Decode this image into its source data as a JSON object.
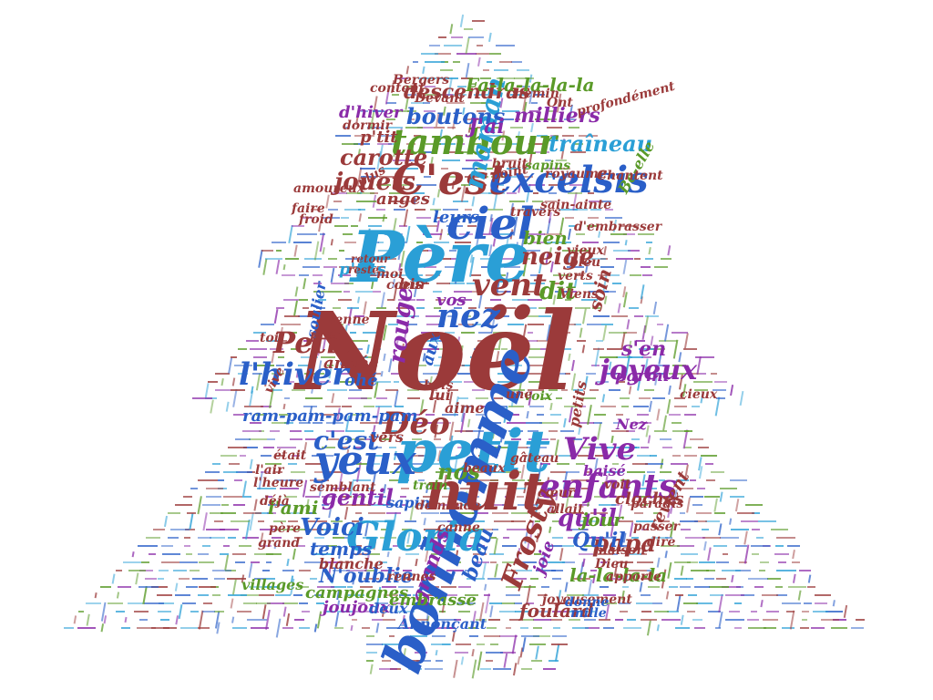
{
  "palette": {
    "red": "#9b3a3a",
    "blue": "#2a5fc8",
    "cyan": "#2a9fd6",
    "green": "#5a9a28",
    "purple": "#8a2aa8"
  },
  "words": [
    {
      "text": "Noël",
      "color": "red"
    },
    {
      "text": "Père",
      "color": "cyan"
    },
    {
      "text": "petit",
      "color": "cyan"
    },
    {
      "text": "bonhomme",
      "color": "blue"
    },
    {
      "text": "nuit",
      "color": "red"
    },
    {
      "text": "C'est",
      "color": "red"
    },
    {
      "text": "excelsis",
      "color": "blue"
    },
    {
      "text": "tambour",
      "color": "green"
    },
    {
      "text": "ciel",
      "color": "blue"
    },
    {
      "text": "Gloria",
      "color": "cyan"
    },
    {
      "text": "yeux",
      "color": "blue"
    },
    {
      "text": "enfants",
      "color": "purple"
    },
    {
      "text": "vent",
      "color": "red"
    },
    {
      "text": "nez",
      "color": "blue"
    },
    {
      "text": "Déo",
      "color": "red"
    },
    {
      "text": "l'hiver",
      "color": "blue"
    },
    {
      "text": "Petit",
      "color": "red"
    },
    {
      "text": "maman",
      "color": "cyan"
    },
    {
      "text": "Frosty",
      "color": "red"
    },
    {
      "text": "joyeux",
      "color": "purple"
    },
    {
      "text": "Vive",
      "color": "purple"
    },
    {
      "text": "neige",
      "color": "red"
    },
    {
      "text": "dit",
      "color": "green"
    },
    {
      "text": "rouge",
      "color": "purple"
    },
    {
      "text": "qu'il",
      "color": "purple"
    },
    {
      "text": "c'est",
      "color": "blue"
    },
    {
      "text": "nos",
      "color": "green"
    },
    {
      "text": "gentil",
      "color": "purple"
    },
    {
      "text": "Voici",
      "color": "blue"
    },
    {
      "text": "papa",
      "color": "red"
    },
    {
      "text": "jouets",
      "color": "red"
    },
    {
      "text": "carotte",
      "color": "red"
    },
    {
      "text": "traîneau",
      "color": "cyan"
    },
    {
      "text": "boutons",
      "color": "blue"
    },
    {
      "text": "descendras",
      "color": "red"
    },
    {
      "text": "Fa-la-la-la-la",
      "color": "green"
    },
    {
      "text": "milliers",
      "color": "purple"
    },
    {
      "text": "bien",
      "color": "green"
    },
    {
      "text": "l'ami",
      "color": "green"
    },
    {
      "text": "temps",
      "color": "blue"
    },
    {
      "text": "jour",
      "color": "green"
    },
    {
      "text": "Qu'il",
      "color": "blue"
    },
    {
      "text": "beau",
      "color": "blue"
    },
    {
      "text": "grands",
      "color": "purple"
    },
    {
      "text": "joie",
      "color": "purple"
    },
    {
      "text": "la-la-la-la",
      "color": "green"
    },
    {
      "text": "N'oublie",
      "color": "blue"
    },
    {
      "text": "embrasse",
      "color": "green"
    },
    {
      "text": "ram-pam-pam-pam",
      "color": "blue"
    },
    {
      "text": "leurs",
      "color": "blue"
    },
    {
      "text": "anges",
      "color": "red"
    },
    {
      "text": "d'hiver",
      "color": "purple"
    },
    {
      "text": "p'tit",
      "color": "red"
    },
    {
      "text": "J'ai",
      "color": "purple"
    },
    {
      "text": "soin",
      "color": "red"
    },
    {
      "text": "s'en",
      "color": "purple"
    },
    {
      "text": "parmi",
      "color": "purple"
    },
    {
      "text": "vos",
      "color": "purple"
    },
    {
      "text": "p'tits",
      "color": "cyan"
    },
    {
      "text": "bis",
      "color": "red"
    },
    {
      "text": "soulier",
      "color": "blue"
    },
    {
      "text": "année",
      "color": "red"
    },
    {
      "text": "ohé",
      "color": "blue"
    },
    {
      "text": "aux",
      "color": "blue"
    },
    {
      "text": "vers",
      "color": "red"
    },
    {
      "text": "revient",
      "color": "red"
    },
    {
      "text": "foulard",
      "color": "red"
    },
    {
      "text": "campagnes",
      "color": "green"
    },
    {
      "text": "joujoux",
      "color": "purple"
    },
    {
      "text": "blanche",
      "color": "red"
    },
    {
      "text": "cloches",
      "color": "red"
    },
    {
      "text": "sapin",
      "color": "blue"
    },
    {
      "text": "Annonçant",
      "color": "blue"
    },
    {
      "text": "villages",
      "color": "green"
    },
    {
      "text": "baisé",
      "color": "purple"
    },
    {
      "text": "Nez",
      "color": "purple"
    },
    {
      "text": "petits",
      "color": "red"
    },
    {
      "text": "lui",
      "color": "red"
    },
    {
      "text": "aime",
      "color": "red"
    },
    {
      "text": "voix",
      "color": "green"
    },
    {
      "text": "train",
      "color": "green"
    },
    {
      "text": "paradis",
      "color": "red"
    },
    {
      "text": "passer",
      "color": "red"
    },
    {
      "text": "maison",
      "color": "red"
    },
    {
      "text": "apporte",
      "color": "red"
    },
    {
      "text": "Dieu",
      "color": "red"
    },
    {
      "text": "rennes",
      "color": "red"
    },
    {
      "text": "joyeusement",
      "color": "red"
    },
    {
      "text": "deux",
      "color": "blue"
    },
    {
      "text": "donne",
      "color": "blue"
    },
    {
      "text": "mille",
      "color": "blue"
    },
    {
      "text": "Be-elle",
      "color": "green"
    },
    {
      "text": "sapins",
      "color": "green"
    },
    {
      "text": "bruit",
      "color": "red"
    },
    {
      "text": "sain-ainte",
      "color": "red"
    },
    {
      "text": "amoureux",
      "color": "red"
    },
    {
      "text": "faire",
      "color": "red"
    },
    {
      "text": "froid",
      "color": "red"
    },
    {
      "text": "dormir",
      "color": "red"
    },
    {
      "text": "content",
      "color": "red"
    },
    {
      "text": "Bergers",
      "color": "red"
    },
    {
      "text": "Devant",
      "color": "red"
    },
    {
      "text": "chemin",
      "color": "red"
    },
    {
      "text": "Ont",
      "color": "red"
    },
    {
      "text": "profondément",
      "color": "red"
    },
    {
      "text": "royaume",
      "color": "red"
    },
    {
      "text": "point",
      "color": "red"
    },
    {
      "text": "Chantent",
      "color": "red"
    },
    {
      "text": "plus",
      "color": "red"
    },
    {
      "text": "travers",
      "color": "red"
    },
    {
      "text": "d'embrasser",
      "color": "red"
    },
    {
      "text": "bleu",
      "color": "red"
    },
    {
      "text": "retour",
      "color": "red"
    },
    {
      "text": "reste",
      "color": "red"
    },
    {
      "text": "moi",
      "color": "red"
    },
    {
      "text": "coeur",
      "color": "red"
    },
    {
      "text": "renne",
      "color": "red"
    },
    {
      "text": "toi",
      "color": "red"
    },
    {
      "text": "près",
      "color": "red"
    },
    {
      "text": "vieux",
      "color": "red"
    },
    {
      "text": "verts",
      "color": "red"
    },
    {
      "text": "Viens",
      "color": "red"
    },
    {
      "text": "cieux",
      "color": "red"
    },
    {
      "text": "vive",
      "color": "red"
    },
    {
      "text": "bois",
      "color": "red"
    },
    {
      "text": "une",
      "color": "red"
    },
    {
      "text": "gâteau",
      "color": "red"
    },
    {
      "text": "était",
      "color": "red"
    },
    {
      "text": "l'air",
      "color": "red"
    },
    {
      "text": "l'heure",
      "color": "red"
    },
    {
      "text": "déjà",
      "color": "red"
    },
    {
      "text": "père",
      "color": "red"
    },
    {
      "text": "grand",
      "color": "red"
    },
    {
      "text": "semblant",
      "color": "red"
    },
    {
      "text": "demande",
      "color": "red"
    },
    {
      "text": "canne",
      "color": "red"
    },
    {
      "text": "beaux",
      "color": "red"
    },
    {
      "text": "cœur",
      "color": "red"
    },
    {
      "text": "allait",
      "color": "red"
    },
    {
      "text": "voit",
      "color": "red"
    },
    {
      "text": "dire",
      "color": "red"
    },
    {
      "text": "nouveau",
      "color": "red"
    },
    {
      "text": "Joyeux",
      "color": "red"
    },
    {
      "text": "grand-mère",
      "color": "red"
    }
  ]
}
